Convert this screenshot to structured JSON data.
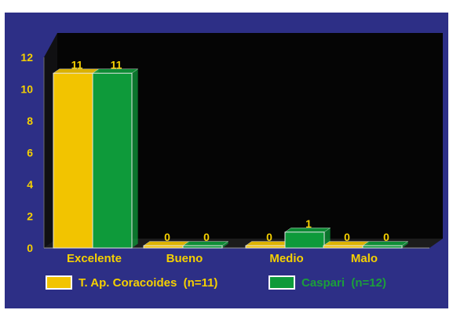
{
  "chart_data": {
    "type": "bar",
    "categories": [
      "Excelente",
      "Bueno",
      "Medio",
      "Malo"
    ],
    "series": [
      {
        "name": "T. Ap. Coracoides  (n=11)",
        "values": [
          11,
          0,
          0,
          0
        ],
        "color": "#f2c400",
        "text_color": "#f5d000"
      },
      {
        "name": "Caspari  (n=12)",
        "values": [
          11,
          0,
          1,
          0
        ],
        "color": "#0e9a3a",
        "text_color": "#1c9f3a"
      }
    ],
    "data_labels": [
      [
        "11",
        "0",
        "0",
        "0"
      ],
      [
        "11",
        "0",
        "1",
        "0"
      ]
    ],
    "yticks": [
      "0",
      "2",
      "4",
      "6",
      "8",
      "10",
      "12"
    ],
    "ylim": [
      0,
      12
    ],
    "label_color": "#f5d000",
    "plot_background": "#050505",
    "background": "#2d2f86",
    "grid": false,
    "legend_position": "bottom"
  }
}
